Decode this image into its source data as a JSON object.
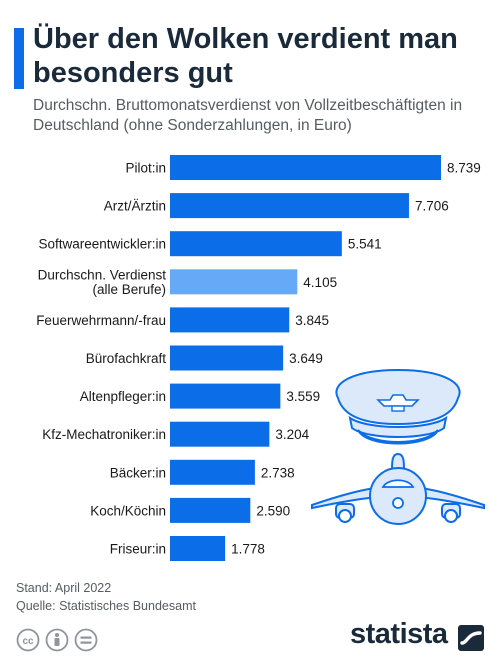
{
  "header": {
    "title": "Über den Wolken verdient man besonders gut",
    "subtitle": "Durchschn. Bruttomonatsverdienst von Vollzeitbeschäftigten in Deutschland (ohne Sonderzahlungen, in Euro)"
  },
  "chart_data": {
    "type": "bar",
    "orientation": "horizontal",
    "categories": [
      "Pilot:in",
      "Arzt/Ärztin",
      "Softwareentwickler:in",
      "Durchschn. Verdienst (alle Berufe)",
      "Feuerwehrmann/-frau",
      "Bürofachkraft",
      "Altenpfleger:in",
      "Kfz-Mechatroniker:in",
      "Bäcker:in",
      "Koch/Köchin",
      "Friseur:in"
    ],
    "values": [
      8739,
      7706,
      5541,
      4105,
      3845,
      3649,
      3559,
      3204,
      2738,
      2590,
      1778
    ],
    "value_labels": [
      "8.739",
      "7.706",
      "5.541",
      "4.105",
      "3.845",
      "3.649",
      "3.559",
      "3.204",
      "2.738",
      "2.590",
      "1.778"
    ],
    "highlight_index": 3,
    "colors": {
      "bar": "#0b6ee8",
      "highlight": "#66aaf7"
    },
    "xlim": [
      0,
      8739
    ],
    "grid": false,
    "legend": "none"
  },
  "illustration": {
    "icons": [
      "pilot-cap-icon",
      "airplane-icon"
    ],
    "colors": {
      "fill": "#dbe9fb",
      "stroke": "#0b6ee8"
    }
  },
  "footer": {
    "stand": "Stand: April 2022",
    "quelle": "Quelle: Statistisches Bundesamt",
    "brand": "statista",
    "license_icons": [
      "cc-icon",
      "person-icon",
      "equals-icon"
    ]
  }
}
